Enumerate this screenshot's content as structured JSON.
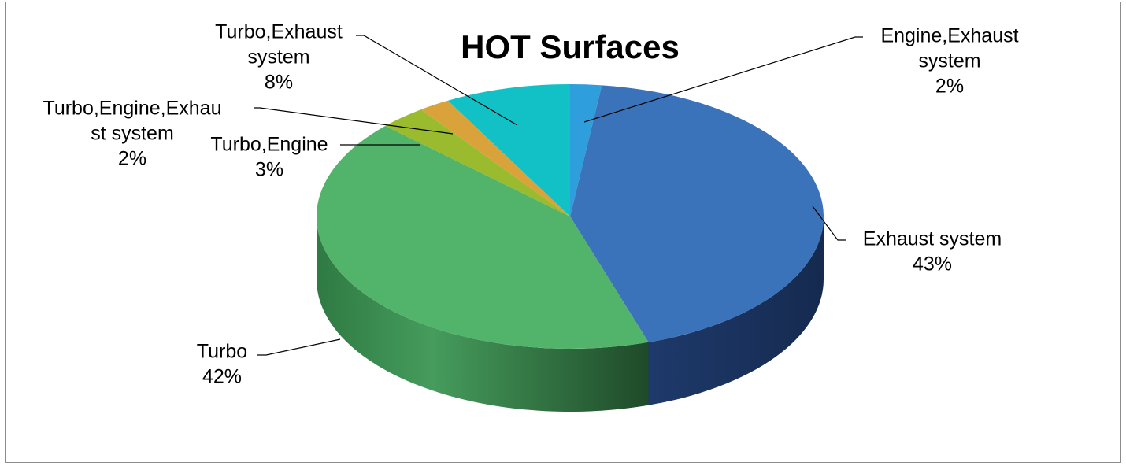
{
  "chart_data": {
    "type": "pie",
    "title": "HOT Surfaces",
    "three_d": true,
    "legend": "none",
    "slices": [
      {
        "category": "Engine,Exhaust system",
        "value": 2,
        "color": "#2e9fdc",
        "label_lines": [
          "Engine,Exhaust",
          "system"
        ],
        "pct_label": "2%"
      },
      {
        "category": "Exhaust system",
        "value": 43,
        "color": "#3b73bb",
        "label_lines": [
          "Exhaust system"
        ],
        "pct_label": "43%"
      },
      {
        "category": "Turbo",
        "value": 42,
        "color": "#52b36a",
        "label_lines": [
          "Turbo"
        ],
        "pct_label": "42%"
      },
      {
        "category": "Turbo,Engine",
        "value": 3,
        "color": "#9bbb2f",
        "label_lines": [
          "Turbo,Engine"
        ],
        "pct_label": "3%"
      },
      {
        "category": "Turbo,Engine,Exhaust system",
        "value": 2,
        "color": "#d9a23a",
        "label_lines": [
          "Turbo,Engine,Exhau",
          "st system"
        ],
        "pct_label": "2%"
      },
      {
        "category": "Turbo,Exhaust system",
        "value": 8,
        "color": "#12c1c6",
        "label_lines": [
          "Turbo,Exhaust",
          "system"
        ],
        "pct_label": "8%"
      }
    ]
  }
}
